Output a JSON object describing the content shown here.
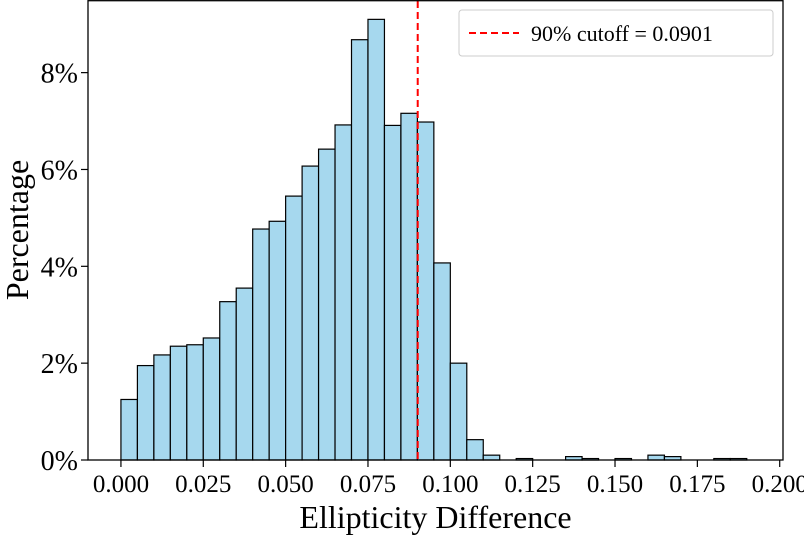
{
  "chart_data": {
    "type": "bar",
    "xlabel": "Ellipticity Difference",
    "ylabel": "Percentage",
    "xlim": [
      -0.01,
      0.201
    ],
    "ylim": [
      0,
      9.5
    ],
    "xticks": [
      0.0,
      0.025,
      0.05,
      0.075,
      0.1,
      0.125,
      0.15,
      0.175,
      0.2
    ],
    "xtick_labels": [
      "0.000",
      "0.025",
      "0.050",
      "0.075",
      "0.100",
      "0.125",
      "0.150",
      "0.175",
      "0.200"
    ],
    "yticks": [
      0,
      2,
      4,
      6,
      8
    ],
    "ytick_labels": [
      "0%",
      "2%",
      "4%",
      "6%",
      "8%"
    ],
    "bin_edges": [
      0.0,
      0.005,
      0.01,
      0.015,
      0.02,
      0.025,
      0.03,
      0.035,
      0.04,
      0.045,
      0.05,
      0.055,
      0.06,
      0.065,
      0.07,
      0.075,
      0.08,
      0.085,
      0.09,
      0.095,
      0.1,
      0.105,
      0.11,
      0.115,
      0.12,
      0.125,
      0.13,
      0.135,
      0.14,
      0.145,
      0.15,
      0.155,
      0.16,
      0.165,
      0.17,
      0.175,
      0.18,
      0.185,
      0.19,
      0.195
    ],
    "values": [
      1.25,
      1.95,
      2.17,
      2.35,
      2.38,
      2.52,
      3.27,
      3.55,
      4.77,
      4.93,
      5.45,
      6.07,
      6.42,
      6.92,
      8.68,
      9.1,
      6.91,
      7.16,
      6.98,
      4.07,
      2.0,
      0.42,
      0.1,
      0.0,
      0.03,
      0.0,
      0.0,
      0.07,
      0.03,
      0.0,
      0.03,
      0.0,
      0.1,
      0.07,
      0.0,
      0.0,
      0.03,
      0.03,
      0.0
    ],
    "bar_color": "#a6d8ee",
    "edge_color": "#000000",
    "cutoff": {
      "value": 0.0901,
      "color": "#ff0000",
      "label": "90% cutoff = 0.0901"
    },
    "legend_position": "top-right",
    "grid": false
  }
}
